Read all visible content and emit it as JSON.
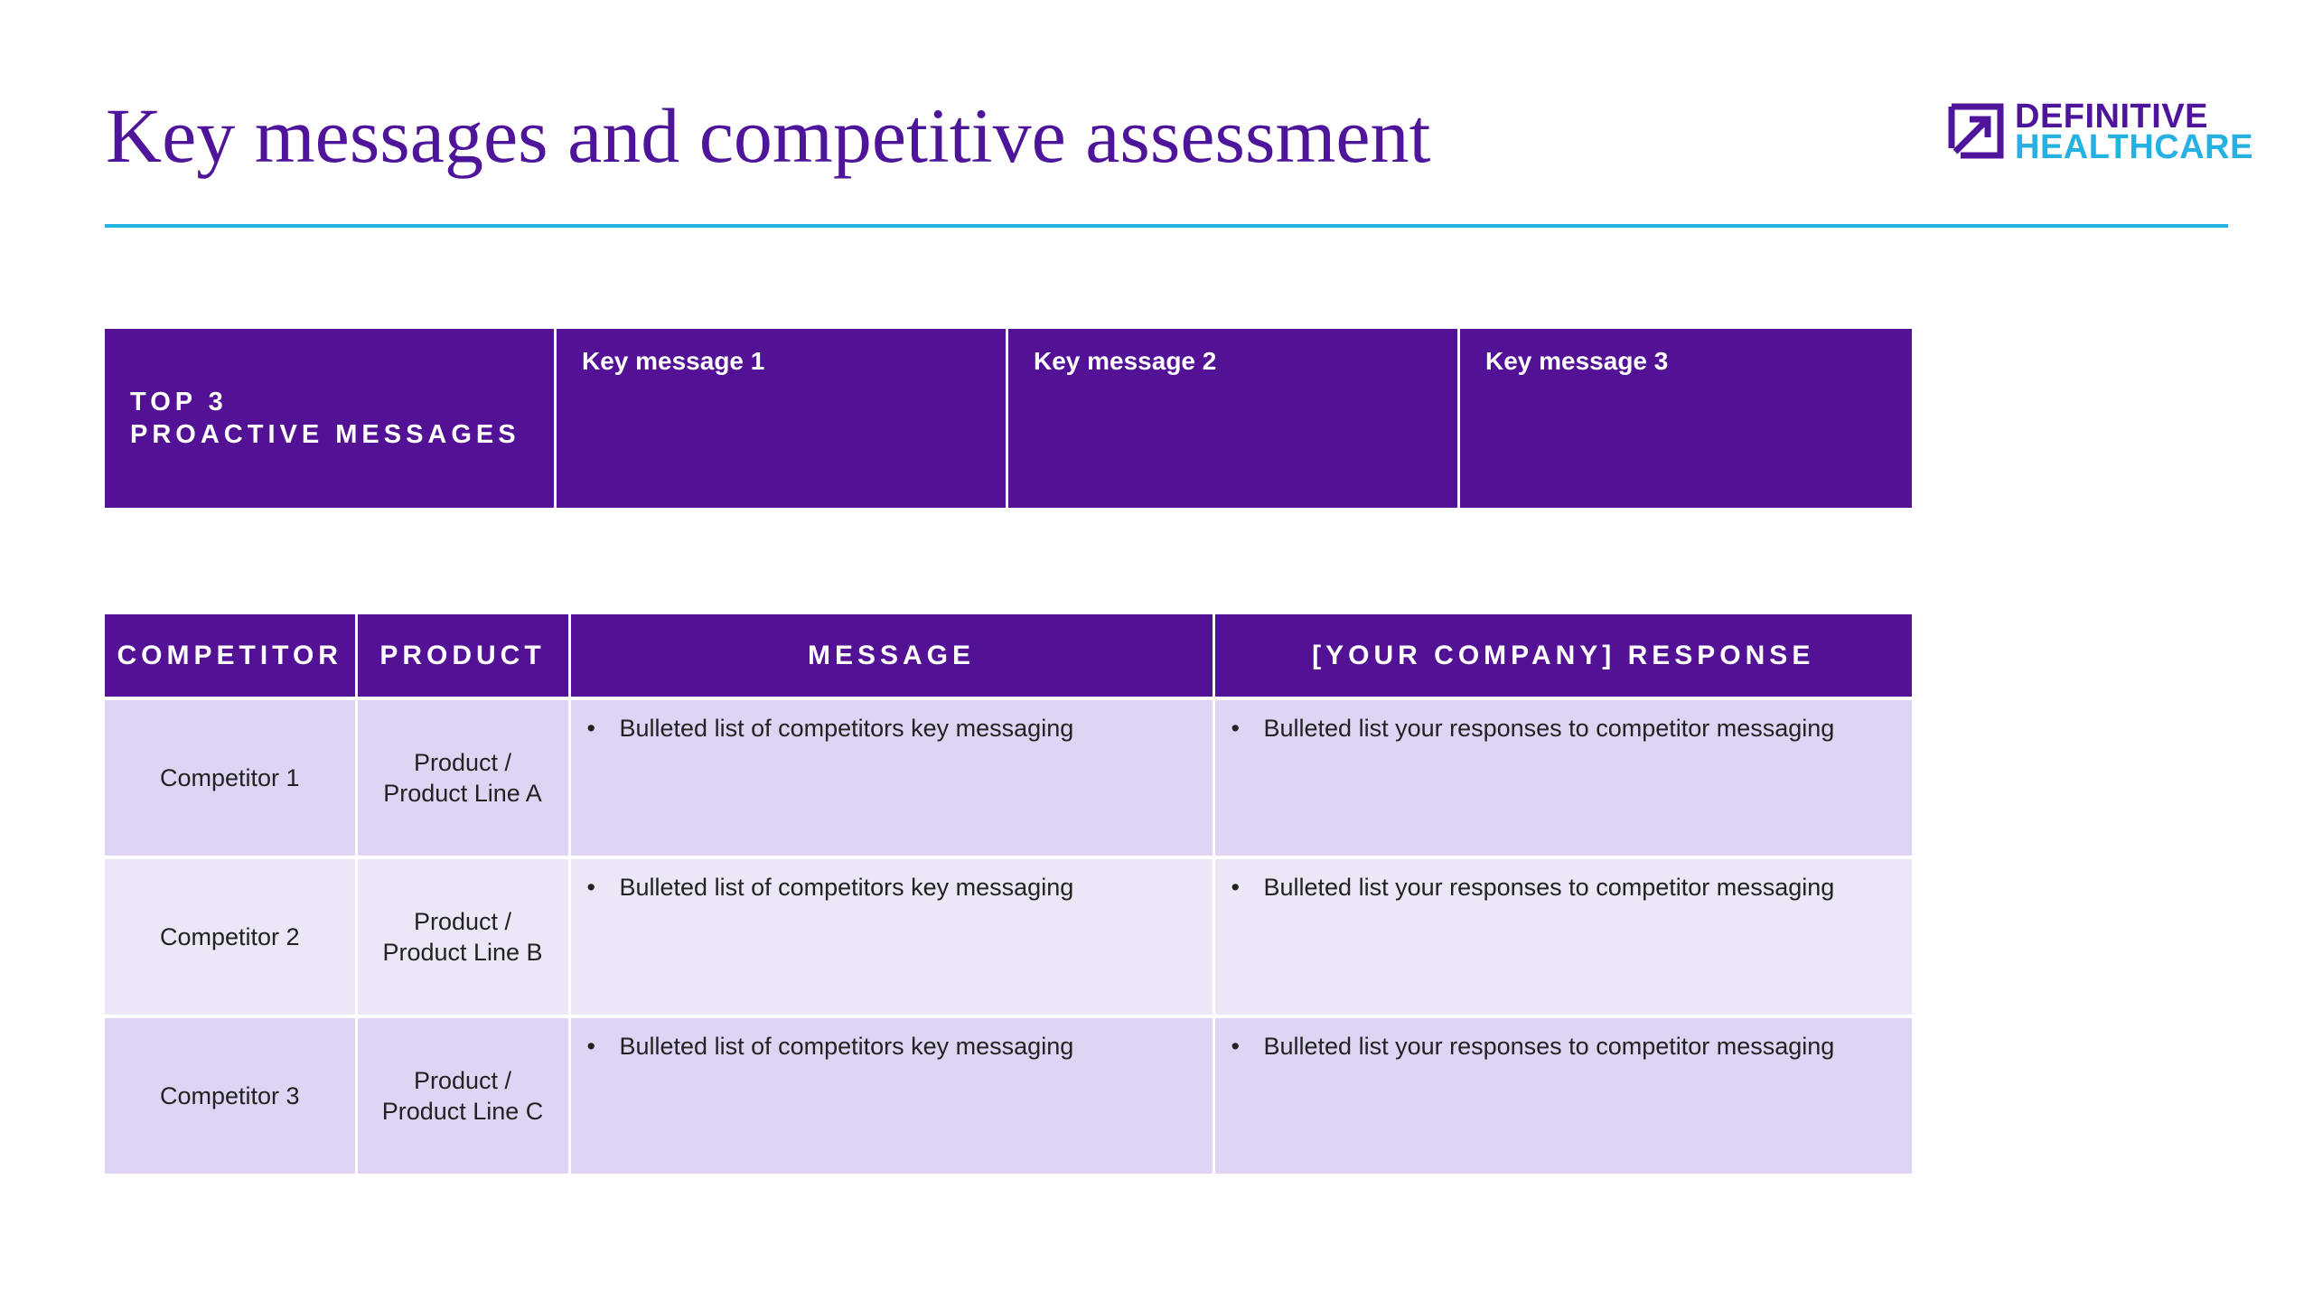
{
  "slide": {
    "title": "Key messages and competitive assessment"
  },
  "logo": {
    "line1": "DEFINITIVE",
    "line2": "HEALTHCARE",
    "mark_icon": "definitive-healthcare-arrow-logo",
    "color_primary": "#4e149a",
    "color_secondary": "#26b1e3"
  },
  "messages": {
    "label": "TOP 3\nPROACTIVE MESSAGES",
    "keys": [
      "Key message 1",
      "Key message 2",
      "Key message 3"
    ]
  },
  "competitors": {
    "headers": {
      "competitor": "COMPETITOR",
      "product": "PRODUCT",
      "message": "MESSAGE",
      "response": "[YOUR COMPANY] RESPONSE"
    },
    "rows": [
      {
        "competitor": "Competitor 1",
        "product": "Product /\nProduct Line A",
        "message": "Bulleted list of competitors key messaging",
        "response": "Bulleted list your responses to competitor messaging"
      },
      {
        "competitor": "Competitor 2",
        "product": "Product /\nProduct Line B",
        "message": "Bulleted list of competitors key messaging",
        "response": "Bulleted list your responses to competitor messaging"
      },
      {
        "competitor": "Competitor 3",
        "product": "Product /\nProduct Line C",
        "message": "Bulleted list of competitors key messaging",
        "response": "Bulleted list your responses to competitor messaging"
      }
    ]
  },
  "colors": {
    "header_purple": "#531195",
    "row_light": "#e0d4f4",
    "row_lighter": "#ece6f7",
    "accent_rule": "#26b1e3"
  }
}
